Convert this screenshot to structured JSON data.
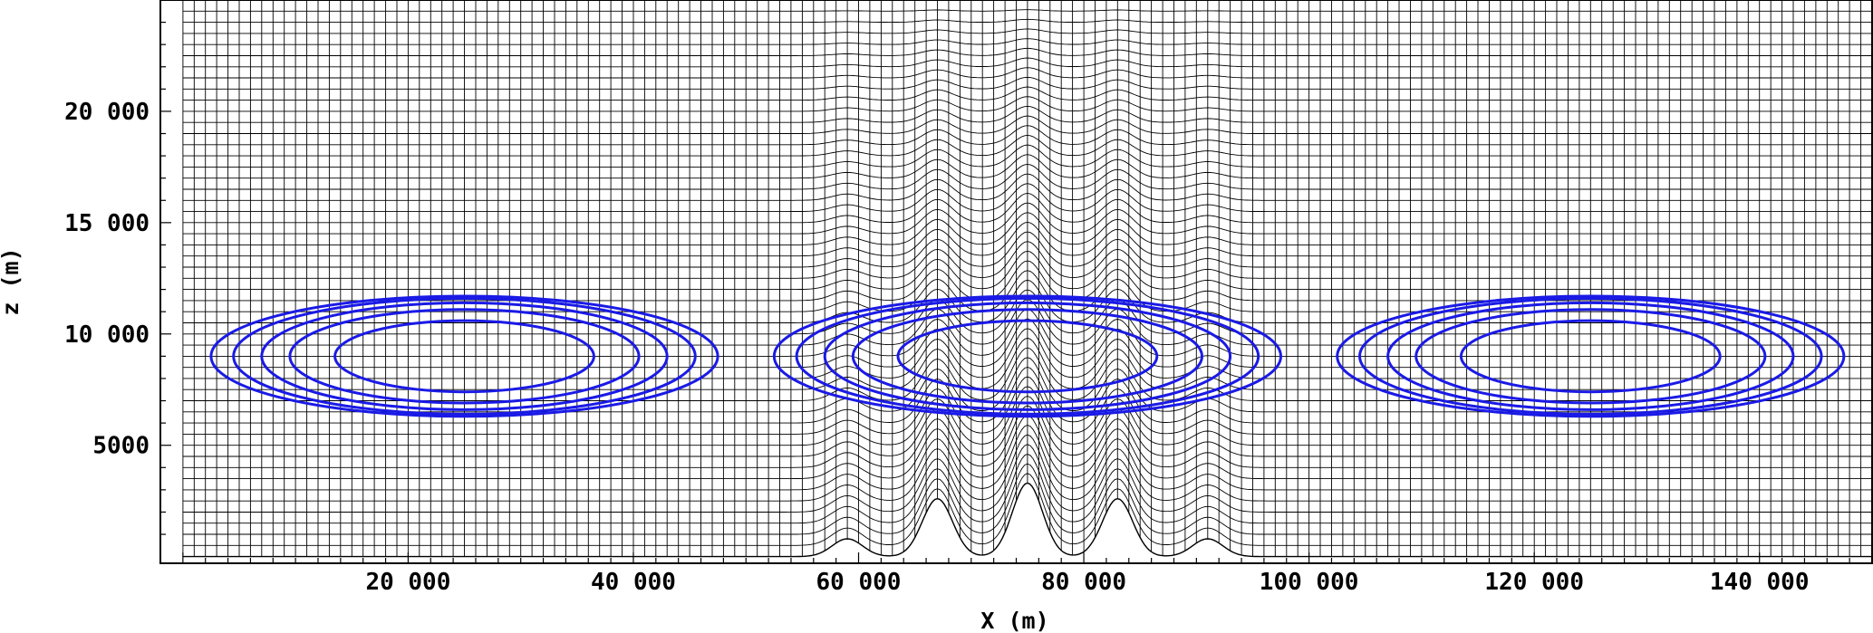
{
  "chart_data": {
    "type": "line",
    "title": "",
    "xlabel": "X (m)",
    "ylabel": "z (m)",
    "xlim": [
      -2000,
      150000
    ],
    "ylim": [
      -300,
      25000
    ],
    "x_ticks": [
      20000,
      40000,
      60000,
      80000,
      100000,
      120000,
      140000
    ],
    "x_tick_labels": [
      "20 000",
      "40 000",
      "60 000",
      "80 000",
      "100 000",
      "120 000",
      "140 000"
    ],
    "y_ticks": [
      5000,
      10000,
      15000,
      20000
    ],
    "y_tick_labels": [
      "5000",
      "10 000",
      "15 000",
      "20 000"
    ],
    "grid": true,
    "colors": {
      "mesh": "#000000",
      "contour": "#1a1ae6",
      "background": "#ffffff"
    },
    "mesh": {
      "description": "terrain-following computational grid over five hills",
      "dx": 1000,
      "z_levels": 50,
      "z_top": 25000,
      "terrain": {
        "hill_centers": [
          59000,
          67000,
          75000,
          83000,
          91000
        ],
        "hill_heights": [
          800,
          2600,
          3300,
          2600,
          800
        ]
      }
    },
    "series": [
      {
        "center_x": 25000,
        "center_z": 9000,
        "semi_x": [
          11500,
          15500,
          18000,
          20500,
          22500
        ],
        "semi_z": [
          1600,
          2100,
          2400,
          2600,
          2700
        ]
      },
      {
        "center_x": 75000,
        "center_z": 9000,
        "semi_x": [
          11500,
          15500,
          18000,
          20500,
          22500
        ],
        "semi_z": [
          1600,
          2100,
          2400,
          2600,
          2700
        ]
      },
      {
        "center_x": 125000,
        "center_z": 9000,
        "semi_x": [
          11500,
          15500,
          18000,
          20500,
          22500
        ],
        "semi_z": [
          1600,
          2100,
          2400,
          2600,
          2700
        ]
      }
    ]
  }
}
